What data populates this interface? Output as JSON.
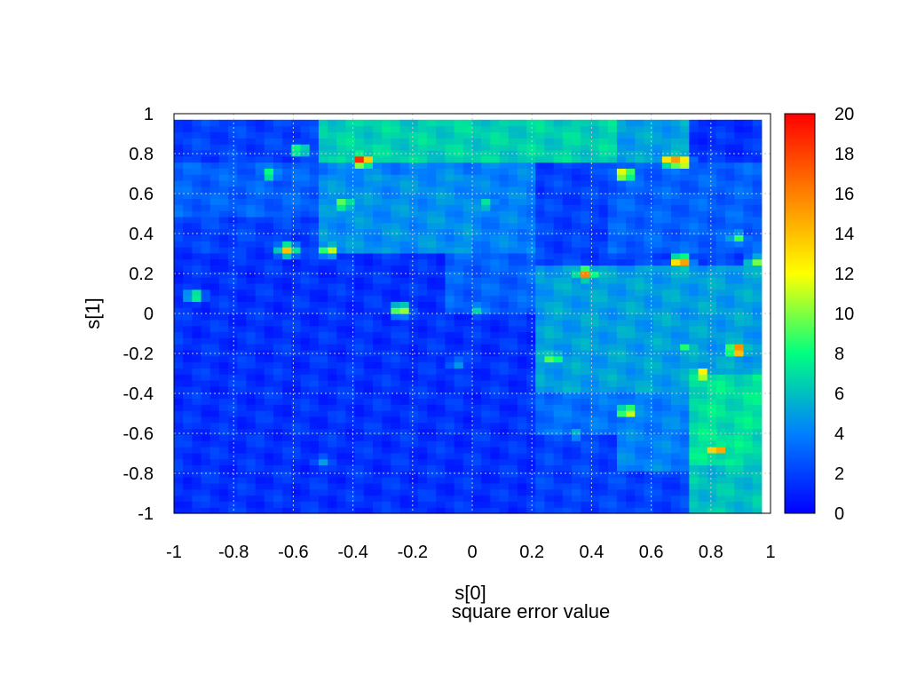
{
  "chart_data": {
    "type": "heatmap",
    "title": "",
    "xlabel": "s[0]",
    "ylabel": "s[1]",
    "caption": "square error value",
    "xlim": [
      -1,
      1
    ],
    "ylim": [
      -1,
      1
    ],
    "x_ticks": [
      "-1",
      "-0.8",
      "-0.6",
      "-0.4",
      "-0.2",
      "0",
      "0.2",
      "0.4",
      "0.6",
      "0.8",
      "1"
    ],
    "y_ticks": [
      "-1",
      "-0.8",
      "-0.6",
      "-0.4",
      "-0.2",
      "0",
      "0.2",
      "0.4",
      "0.6",
      "0.8",
      "1"
    ],
    "colorbar_range": [
      0,
      20
    ],
    "colorbar_ticks": [
      "0",
      "2",
      "4",
      "6",
      "8",
      "10",
      "12",
      "14",
      "16",
      "18",
      "20"
    ],
    "colorscale": [
      "#0000ff",
      "#0080ff",
      "#00ff80",
      "#ffff00",
      "#ff8000",
      "#ff0000"
    ],
    "grid": true,
    "regions": [
      {
        "x": [
          -1.0,
          0.98
        ],
        "y": [
          -1.0,
          0.98
        ],
        "value": 2.0
      },
      {
        "x": [
          -0.5,
          0.2
        ],
        "y": [
          0.3,
          0.75
        ],
        "value": 4.0
      },
      {
        "x": [
          -1.0,
          -0.5
        ],
        "y": [
          0.5,
          0.75
        ],
        "value": 3.0
      },
      {
        "x": [
          -0.5,
          0.0
        ],
        "y": [
          0.3,
          0.7
        ],
        "value": 4.5
      },
      {
        "x": [
          -0.53,
          0.47
        ],
        "y": [
          0.75,
          0.98
        ],
        "value": 6.5
      },
      {
        "x": [
          0.47,
          0.72
        ],
        "y": [
          0.75,
          0.98
        ],
        "value": 5.0
      },
      {
        "x": [
          0.72,
          0.98
        ],
        "y": [
          0.75,
          0.98
        ],
        "value": 1.5
      },
      {
        "x": [
          0.45,
          0.98
        ],
        "y": [
          0.3,
          0.75
        ],
        "value": 3.0
      },
      {
        "x": [
          0.2,
          0.98
        ],
        "y": [
          -0.05,
          0.25
        ],
        "value": 5.0
      },
      {
        "x": [
          0.2,
          0.98
        ],
        "y": [
          -0.4,
          -0.05
        ],
        "value": 5.0
      },
      {
        "x": [
          0.2,
          0.47
        ],
        "y": [
          -0.6,
          -0.4
        ],
        "value": 3.5
      },
      {
        "x": [
          0.47,
          0.72
        ],
        "y": [
          -0.8,
          -0.4
        ],
        "value": 4.0
      },
      {
        "x": [
          0.72,
          0.98
        ],
        "y": [
          -0.75,
          -0.3
        ],
        "value": 7.0
      },
      {
        "x": [
          0.72,
          0.98
        ],
        "y": [
          -1.0,
          -0.75
        ],
        "value": 6.0
      },
      {
        "x": [
          -1.0,
          0.2
        ],
        "y": [
          -1.0,
          0.3
        ],
        "value": 1.5
      },
      {
        "x": [
          -0.1,
          0.2
        ],
        "y": [
          0.0,
          0.3
        ],
        "value": 3.0
      }
    ],
    "hotspots": [
      {
        "x": -0.37,
        "y": 0.77,
        "value": 20
      },
      {
        "x": 0.67,
        "y": 0.77,
        "value": 17
      },
      {
        "x": 0.7,
        "y": 0.76,
        "value": 16
      },
      {
        "x": 0.51,
        "y": 0.7,
        "value": 14
      },
      {
        "x": -0.58,
        "y": 0.82,
        "value": 10
      },
      {
        "x": -0.68,
        "y": 0.7,
        "value": 9
      },
      {
        "x": -0.43,
        "y": 0.55,
        "value": 11
      },
      {
        "x": 0.05,
        "y": 0.55,
        "value": 8
      },
      {
        "x": -0.62,
        "y": 0.32,
        "value": 14
      },
      {
        "x": -0.48,
        "y": 0.32,
        "value": 12
      },
      {
        "x": 0.38,
        "y": 0.2,
        "value": 16
      },
      {
        "x": 0.7,
        "y": 0.26,
        "value": 17
      },
      {
        "x": 0.89,
        "y": 0.38,
        "value": 9
      },
      {
        "x": 0.95,
        "y": 0.26,
        "value": 10
      },
      {
        "x": -0.93,
        "y": 0.09,
        "value": 9
      },
      {
        "x": -0.24,
        "y": 0.02,
        "value": 12
      },
      {
        "x": 0.02,
        "y": 0.02,
        "value": 7
      },
      {
        "x": 0.27,
        "y": -0.22,
        "value": 11
      },
      {
        "x": 0.89,
        "y": -0.18,
        "value": 18
      },
      {
        "x": 0.77,
        "y": -0.3,
        "value": 14
      },
      {
        "x": 0.52,
        "y": -0.49,
        "value": 13
      },
      {
        "x": 0.82,
        "y": -0.68,
        "value": 17
      },
      {
        "x": 0.35,
        "y": -0.6,
        "value": 6
      },
      {
        "x": -0.5,
        "y": -0.74,
        "value": 5
      },
      {
        "x": 0.72,
        "y": -0.17,
        "value": 9
      },
      {
        "x": -0.05,
        "y": -0.25,
        "value": 5
      }
    ]
  }
}
